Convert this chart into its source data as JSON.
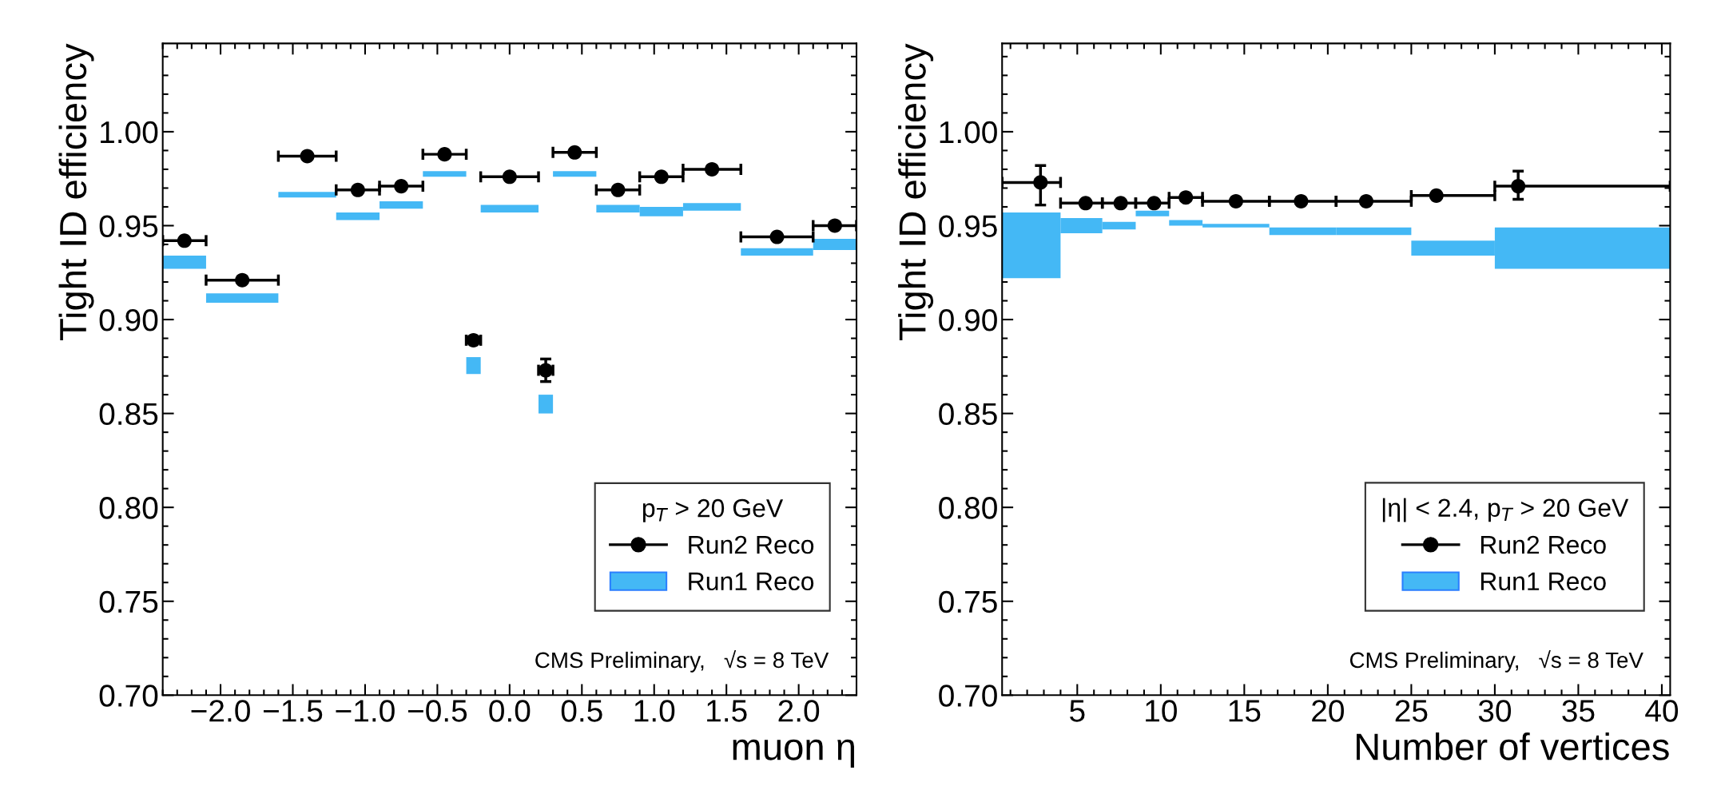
{
  "chart_data": [
    {
      "type": "scatter",
      "xlabel": "muon η",
      "ylabel": "Tight ID efficiency",
      "legend": "bottom right",
      "legend_title": "p$_{T}$ > 20 GeV",
      "marker": "circle",
      "annotations": [
        "CMS Preliminary,   √s = 8 TeV"
      ],
      "xlim": [
        -2.4,
        2.4
      ],
      "ylim": [
        0.7,
        1.047
      ],
      "xticks": [
        {
          "value": -2.0,
          "label": "−2.0"
        },
        {
          "value": -1.5,
          "label": "−1.5"
        },
        {
          "value": -1.0,
          "label": "−1.0"
        },
        {
          "value": -0.5,
          "label": "−0.5"
        },
        {
          "value": 0,
          "label": "0.0"
        },
        {
          "value": 0.5,
          "label": "0.5"
        },
        {
          "value": 1.0,
          "label": "1.0"
        },
        {
          "value": 1.5,
          "label": "1.5"
        },
        {
          "value": 2.0,
          "label": "2.0"
        }
      ],
      "yticks": [
        {
          "value": 0.7,
          "label": "0.70"
        },
        {
          "value": 0.75,
          "label": "0.75"
        },
        {
          "value": 0.8,
          "label": "0.80"
        },
        {
          "value": 0.85,
          "label": "0.85"
        },
        {
          "value": 0.9,
          "label": "0.90"
        },
        {
          "value": 0.95,
          "label": "0.95"
        },
        {
          "value": 1.0,
          "label": "1.00"
        }
      ],
      "series": [
        {
          "name": "Run2 Reco",
          "color": "#000000",
          "x": [
            -2.25,
            -1.85,
            -1.4,
            -1.05,
            -0.75,
            -0.45,
            -0.25,
            0,
            0.25,
            0.45,
            0.75,
            1.05,
            1.4,
            1.85,
            2.25
          ],
          "values": [
            0.942,
            0.921,
            0.987,
            0.969,
            0.971,
            0.988,
            0.889,
            0.976,
            0.873,
            0.989,
            0.969,
            0.976,
            0.98,
            0.944,
            0.95
          ],
          "errors": [
            null,
            null,
            null,
            null,
            null,
            null,
            null,
            null,
            0.006,
            null,
            null,
            null,
            null,
            null,
            null
          ],
          "xerrors": [
            0.15,
            0.25,
            0.2,
            0.15,
            0.15,
            0.15,
            0.05,
            0.2,
            0.05,
            0.15,
            0.15,
            0.15,
            0.2,
            0.25,
            0.15
          ]
        },
        {
          "name": "Run1 Reco",
          "type": "histogram",
          "color": "#44b8f5",
          "bins": [
            -2.4,
            -2.1,
            -1.6,
            -1.2,
            -0.9,
            -0.6,
            -0.3,
            -0.2,
            0.2,
            0.3,
            0.6,
            0.9,
            1.2,
            1.6,
            2.1,
            2.4
          ],
          "base": [
            0.927,
            0.909,
            0.965,
            0.953,
            0.959,
            0.976,
            0.871,
            0.957,
            0.85,
            0.976,
            0.957,
            0.955,
            0.958,
            0.934,
            0.937
          ],
          "values": [
            0.007,
            0.005,
            0.003,
            0.004,
            0.004,
            0.003,
            0.009,
            0.004,
            0.01,
            0.003,
            0.004,
            0.005,
            0.004,
            0.004,
            0.006
          ]
        }
      ]
    },
    {
      "type": "scatter",
      "xlabel": "Number of vertices",
      "ylabel": "Tight ID efficiency",
      "legend": "bottom right",
      "legend_title": "|η| < 2.4, p$_{T}$ > 20 GeV",
      "marker": "circle",
      "annotations": [
        "CMS Preliminary,   √s = 8 TeV"
      ],
      "xlim": [
        0.5,
        40.5
      ],
      "ylim": [
        0.7,
        1.047
      ],
      "xticks": [
        5,
        10,
        15,
        20,
        25,
        30,
        35,
        40
      ],
      "yticks": [
        {
          "value": 0.7,
          "label": "0.70"
        },
        {
          "value": 0.75,
          "label": "0.75"
        },
        {
          "value": 0.8,
          "label": "0.80"
        },
        {
          "value": 0.85,
          "label": "0.85"
        },
        {
          "value": 0.9,
          "label": "0.90"
        },
        {
          "value": 0.95,
          "label": "0.95"
        },
        {
          "value": 1.0,
          "label": "1.00"
        }
      ],
      "series": [
        {
          "name": "Run2 Reco",
          "color": "#000000",
          "x": [
            2.8,
            5.5,
            7.6,
            9.6,
            11.5,
            14.5,
            18.4,
            22.3,
            26.5,
            31.4
          ],
          "values": [
            0.973,
            0.962,
            0.962,
            0.962,
            0.965,
            0.963,
            0.963,
            0.963,
            0.966,
            0.971
          ],
          "errors": [
            [
              0.961,
              0.982
            ],
            null,
            null,
            null,
            null,
            null,
            null,
            null,
            null,
            [
              0.964,
              0.979
            ]
          ],
          "xerrors": [
            [
              0.5,
              4
            ],
            [
              4,
              6.5
            ],
            [
              6.5,
              8.5
            ],
            [
              8.5,
              10.5
            ],
            [
              10.5,
              12.5
            ],
            [
              12.5,
              16.5
            ],
            [
              16.5,
              20.5
            ],
            [
              20.5,
              25
            ],
            [
              25,
              30
            ],
            [
              30,
              40.5
            ]
          ]
        },
        {
          "name": "Run1 Reco",
          "type": "histogram",
          "color": "#44b8f5",
          "bins": [
            0.5,
            4,
            6.5,
            8.5,
            10.5,
            12.5,
            16.5,
            20.5,
            25,
            30,
            40.5
          ],
          "base": [
            0.922,
            0.946,
            0.948,
            0.955,
            0.95,
            0.949,
            0.945,
            0.945,
            0.934,
            0.927
          ],
          "values": [
            0.035,
            0.008,
            0.004,
            0.003,
            0.003,
            0.002,
            0.004,
            0.004,
            0.008,
            0.022
          ]
        }
      ]
    }
  ]
}
